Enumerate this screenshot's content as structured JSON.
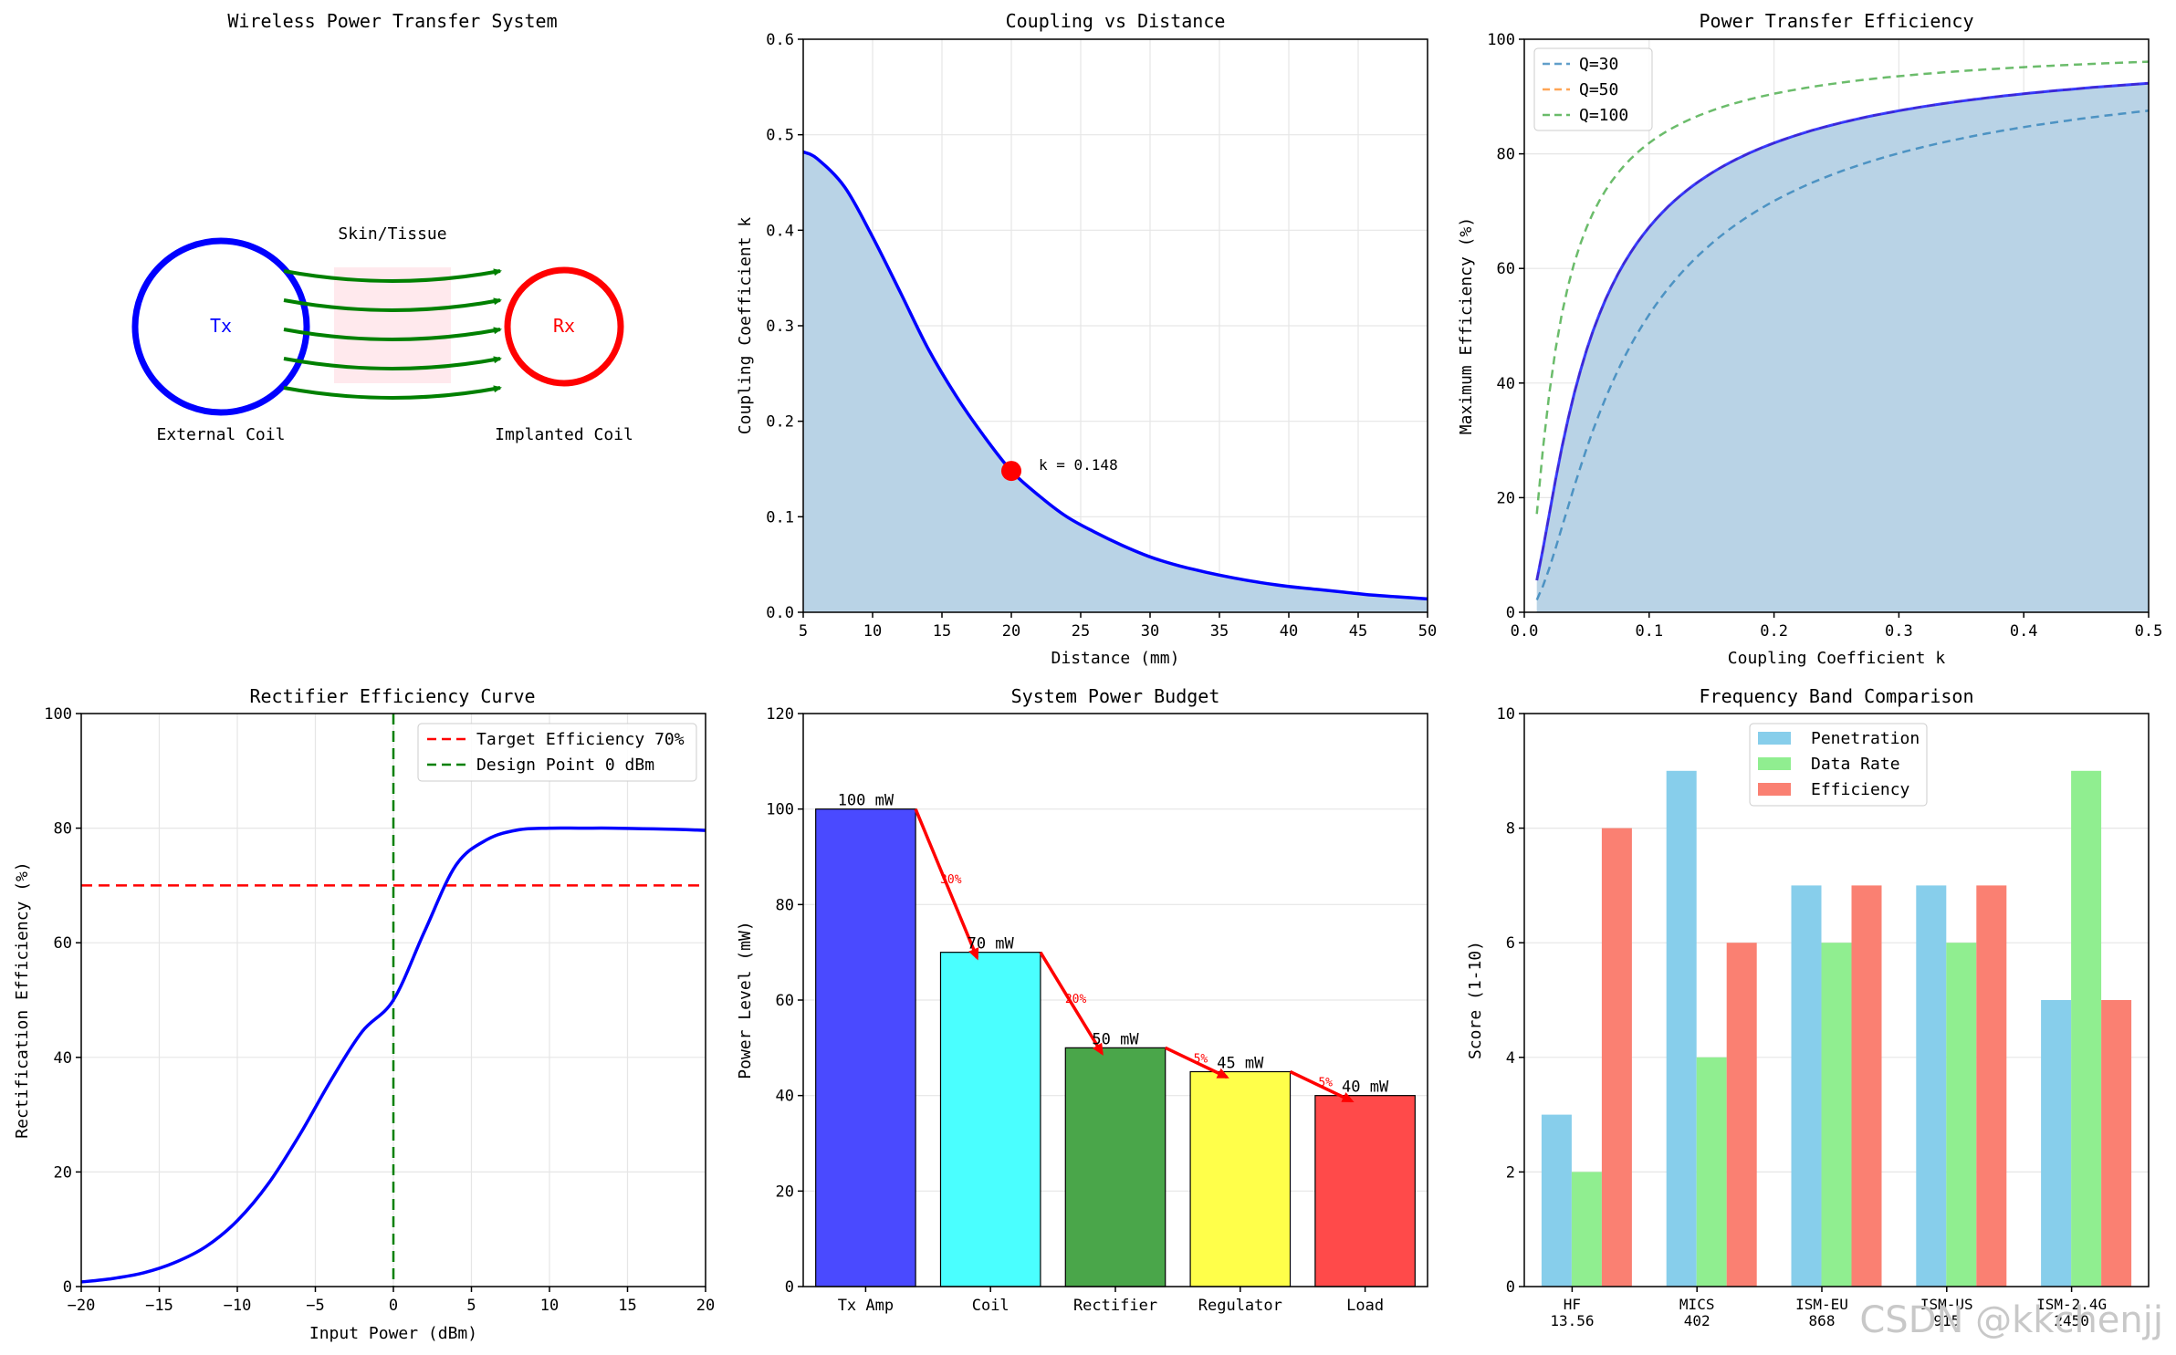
{
  "watermark": "CSDN @kkchenjj",
  "colors": {
    "blue": "#0000ff",
    "fill": "#b9d3e6",
    "red": "#ff0000",
    "green": "#008000",
    "grid": "#e6e6e6"
  },
  "chart_data": [
    {
      "type": "diagram",
      "title": "Wireless Power Transfer System",
      "tx_label": "Tx",
      "rx_label": "Rx",
      "tissue_label": "Skin/Tissue",
      "tx_caption": "External Coil",
      "rx_caption": "Implanted Coil",
      "arrow_count": 5
    },
    {
      "type": "area",
      "title": "Coupling vs Distance",
      "xlabel": "Distance (mm)",
      "ylabel": "Coupling Coefficient k",
      "xlim": [
        5,
        50
      ],
      "ylim": [
        0,
        0.6
      ],
      "xticks": [
        "5",
        "10",
        "15",
        "20",
        "25",
        "30",
        "35",
        "40",
        "45",
        "50"
      ],
      "yticks": [
        "0.0",
        "0.1",
        "0.2",
        "0.3",
        "0.4",
        "0.5",
        "0.6"
      ],
      "x": [
        5,
        6,
        8,
        10,
        12,
        14,
        16,
        18,
        20,
        22,
        24,
        26,
        28,
        30,
        32,
        34,
        36,
        38,
        40,
        42,
        44,
        46,
        48,
        50
      ],
      "y": [
        0.482,
        0.475,
        0.445,
        0.393,
        0.335,
        0.276,
        0.227,
        0.185,
        0.148,
        0.122,
        0.1,
        0.084,
        0.07,
        0.058,
        0.049,
        0.042,
        0.036,
        0.031,
        0.027,
        0.024,
        0.021,
        0.018,
        0.016,
        0.014
      ],
      "marker": {
        "x": 20,
        "y": 0.148,
        "label": "k = 0.148"
      }
    },
    {
      "type": "line",
      "title": "Power Transfer Efficiency",
      "xlabel": "Coupling Coefficient k",
      "ylabel": "Maximum Efficiency (%)",
      "xlim": [
        0,
        0.5
      ],
      "ylim": [
        0,
        100
      ],
      "xticks": [
        "0.0",
        "0.1",
        "0.2",
        "0.3",
        "0.4",
        "0.5"
      ],
      "yticks": [
        "0",
        "20",
        "40",
        "60",
        "80",
        "100"
      ],
      "series": [
        {
          "name": "Q=30",
          "Q": 30,
          "color": "#1f77b4"
        },
        {
          "name": "Q=50",
          "Q": 50,
          "color": "#ff7f0e"
        },
        {
          "name": "Q=100",
          "Q": 100,
          "color": "#2ca02c"
        }
      ],
      "highlight_Q": 50
    },
    {
      "type": "line",
      "title": "Rectifier Efficiency Curve",
      "xlabel": "Input Power (dBm)",
      "ylabel": "Rectification Efficiency (%)",
      "xlim": [
        -20,
        20
      ],
      "ylim": [
        0,
        100
      ],
      "xticks": [
        "−20",
        "−15",
        "−10",
        "−5",
        "0",
        "5",
        "10",
        "15",
        "20"
      ],
      "yticks": [
        "0",
        "20",
        "40",
        "60",
        "80",
        "100"
      ],
      "x": [
        -20,
        -18,
        -16,
        -14,
        -12,
        -10,
        -8,
        -6,
        -4,
        -2,
        0,
        2,
        4,
        6,
        8,
        10,
        12,
        14,
        16,
        18,
        20
      ],
      "y": [
        0.8,
        1.4,
        2.4,
        4.2,
        7.0,
        11.5,
        18.0,
        26.5,
        36.0,
        44.5,
        50.0,
        62.0,
        73.5,
        78.0,
        79.7,
        80.0,
        80.0,
        80.0,
        79.9,
        79.8,
        79.6
      ],
      "hline": {
        "y": 70,
        "label": "Target Efficiency 70%"
      },
      "vline": {
        "x": 0,
        "label": "Design Point 0 dBm"
      }
    },
    {
      "type": "bar",
      "title": "System Power Budget",
      "ylabel": "Power Level (mW)",
      "ylim": [
        0,
        120
      ],
      "yticks": [
        "0",
        "20",
        "40",
        "60",
        "80",
        "100",
        "120"
      ],
      "categories": [
        "Tx Amp",
        "Coil",
        "Rectifier",
        "Regulator",
        "Load"
      ],
      "values": [
        100,
        70,
        50,
        45,
        40
      ],
      "value_labels": [
        "100 mW",
        "70 mW",
        "50 mW",
        "45 mW",
        "40 mW"
      ],
      "bar_colors": [
        "#4a4aff",
        "#4affff",
        "#4aa64a",
        "#ffff4a",
        "#ff4a4a"
      ],
      "loss_labels": [
        "30%",
        "20%",
        "5%",
        "5%"
      ]
    },
    {
      "type": "bar",
      "title": "Frequency Band Comparison",
      "ylabel": "Score (1-10)",
      "ylim": [
        0,
        10
      ],
      "yticks": [
        "0",
        "2",
        "4",
        "6",
        "8",
        "10"
      ],
      "categories": [
        "HF",
        "MICS",
        "ISM-EU",
        "ISM-US",
        "ISM-2.4G"
      ],
      "category_sub": [
        "13.56",
        "402",
        "868",
        "915",
        "2450"
      ],
      "series": [
        {
          "name": "Penetration",
          "values": [
            3,
            9,
            7,
            7,
            5
          ],
          "color": "#87ceeb"
        },
        {
          "name": "Data Rate",
          "values": [
            2,
            4,
            6,
            6,
            9
          ],
          "color": "#90ee90"
        },
        {
          "name": "Efficiency",
          "values": [
            8,
            6,
            7,
            7,
            5
          ],
          "color": "#fa8072"
        }
      ]
    }
  ]
}
